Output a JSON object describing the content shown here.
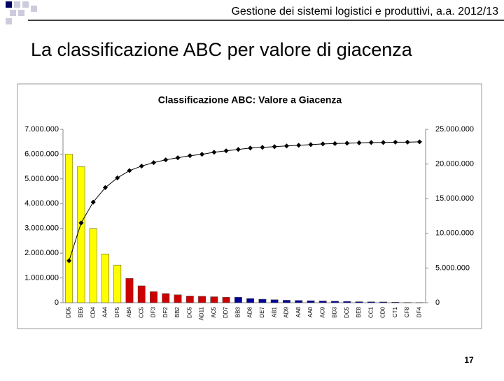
{
  "header": "Gestione dei sistemi logistici e produttivi, a.a. 2012/13",
  "title": "La classificazione ABC per valore di giacenza",
  "page_number": "17",
  "chart_data": {
    "type": "bar",
    "title": "Classificazione ABC: Valore a Giacenza",
    "categories": [
      "DD5",
      "BE6",
      "CD4",
      "AA4",
      "DF5",
      "AB4",
      "CC5",
      "DF3",
      "DF2",
      "BB2",
      "DC5",
      "AD11",
      "AC5",
      "DD7",
      "BB3",
      "AD8",
      "DE7",
      "AB1",
      "AD9",
      "AA8",
      "AA0",
      "AC9",
      "BD3",
      "DC5",
      "BE8",
      "CC1",
      "CD0",
      "CT1",
      "CF8",
      "DF4"
    ],
    "series": [
      {
        "type": "bar",
        "colors": [
          "#ffff00",
          "#ffff00",
          "#ffff00",
          "#ffff00",
          "#ffff00",
          "#cc0000",
          "#cc0000",
          "#cc0000",
          "#cc0000",
          "#cc0000",
          "#cc0000",
          "#cc0000",
          "#cc0000",
          "#cc0000",
          "#000099",
          "#000099",
          "#000099",
          "#000099",
          "#000099",
          "#000099",
          "#000099",
          "#000099",
          "#000099",
          "#000099",
          "#000099",
          "#000099",
          "#000099",
          "#000099",
          "#000099",
          "#000099"
        ],
        "values": [
          6000000,
          5500000,
          3000000,
          1970000,
          1520000,
          980000,
          680000,
          450000,
          370000,
          320000,
          270000,
          260000,
          240000,
          220000,
          220000,
          170000,
          140000,
          120000,
          100000,
          90000,
          80000,
          70000,
          60000,
          50000,
          40000,
          35000,
          30000,
          20000,
          10000,
          5000
        ]
      },
      {
        "type": "line",
        "axis": "y2",
        "color": "#000000",
        "values": [
          6050000,
          11500000,
          14500000,
          16600000,
          18000000,
          19050000,
          19700000,
          20200000,
          20600000,
          20900000,
          21200000,
          21400000,
          21700000,
          21900000,
          22100000,
          22300000,
          22400000,
          22500000,
          22600000,
          22700000,
          22800000,
          22900000,
          22950000,
          23000000,
          23050000,
          23100000,
          23100000,
          23150000,
          23150000,
          23200000
        ]
      }
    ],
    "ylim": [
      0,
      7000000
    ],
    "yticks": [
      {
        "value": 0,
        "label": "0"
      },
      {
        "value": 1000000,
        "label": "1.000.000"
      },
      {
        "value": 2000000,
        "label": "2.000.000"
      },
      {
        "value": 3000000,
        "label": "3.000.000"
      },
      {
        "value": 4000000,
        "label": "4.000.000"
      },
      {
        "value": 5000000,
        "label": "5.000.000"
      },
      {
        "value": 6000000,
        "label": "6.000.000"
      },
      {
        "value": 7000000,
        "label": "7.000.000"
      }
    ],
    "y2lim": [
      0,
      25000000
    ],
    "y2ticks": [
      {
        "value": 0,
        "label": "0"
      },
      {
        "value": 5000000,
        "label": "5.000.000"
      },
      {
        "value": 10000000,
        "label": "10.000.000"
      },
      {
        "value": 15000000,
        "label": "15.000.000"
      },
      {
        "value": 20000000,
        "label": "20.000.000"
      },
      {
        "value": 25000000,
        "label": "25.000.000"
      }
    ]
  }
}
